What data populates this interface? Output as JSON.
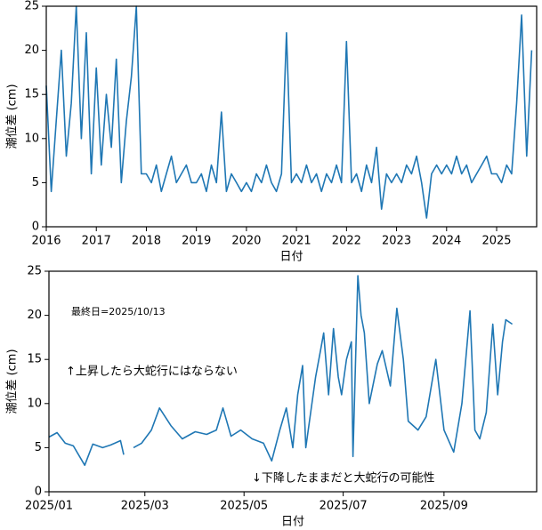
{
  "chart_data": [
    {
      "type": "line",
      "xlabel": "日付",
      "ylabel": "潮位差 (cm)",
      "x": [
        2016.0,
        2016.1,
        2016.2,
        2016.3,
        2016.4,
        2016.5,
        2016.6,
        2016.7,
        2016.8,
        2016.9,
        2017.0,
        2017.1,
        2017.2,
        2017.3,
        2017.4,
        2017.5,
        2017.6,
        2017.7,
        2017.8,
        2017.9,
        2018.0,
        2018.1,
        2018.2,
        2018.3,
        2018.4,
        2018.5,
        2018.6,
        2018.7,
        2018.8,
        2018.9,
        2019.0,
        2019.1,
        2019.2,
        2019.3,
        2019.4,
        2019.5,
        2019.6,
        2019.7,
        2019.8,
        2019.9,
        2020.0,
        2020.1,
        2020.2,
        2020.3,
        2020.4,
        2020.5,
        2020.6,
        2020.7,
        2020.8,
        2020.9,
        2021.0,
        2021.1,
        2021.2,
        2021.3,
        2021.4,
        2021.5,
        2021.6,
        2021.7,
        2021.8,
        2021.9,
        2022.0,
        2022.1,
        2022.2,
        2022.3,
        2022.4,
        2022.5,
        2022.6,
        2022.7,
        2022.8,
        2022.9,
        2023.0,
        2023.1,
        2023.2,
        2023.3,
        2023.4,
        2023.5,
        2023.6,
        2023.7,
        2023.8,
        2023.9,
        2024.0,
        2024.1,
        2024.2,
        2024.3,
        2024.4,
        2024.5,
        2024.6,
        2024.7,
        2024.8,
        2024.9,
        2025.0,
        2025.1,
        2025.2,
        2025.3,
        2025.4,
        2025.5,
        2025.6,
        2025.7
      ],
      "series": [
        {
          "color": "#1f77b4",
          "values": [
            16,
            4,
            12,
            20,
            8,
            14,
            25,
            10,
            22,
            6,
            18,
            7,
            15,
            9,
            19,
            5,
            12,
            17,
            25,
            6,
            6,
            5,
            7,
            4,
            6,
            8,
            5,
            6,
            7,
            5,
            5,
            6,
            4,
            7,
            5,
            13,
            4,
            6,
            5,
            4,
            5,
            4,
            6,
            5,
            7,
            5,
            4,
            6,
            22,
            5,
            6,
            5,
            7,
            5,
            6,
            4,
            6,
            5,
            7,
            5,
            21,
            5,
            6,
            4,
            7,
            5,
            9,
            2,
            6,
            5,
            6,
            5,
            7,
            6,
            8,
            5,
            1,
            6,
            7,
            6,
            7,
            6,
            8,
            6,
            7,
            5,
            6,
            7,
            8,
            6,
            6,
            5,
            7,
            6,
            14,
            24,
            8,
            20
          ]
        }
      ],
      "xlim": [
        2016,
        2025.8
      ],
      "xticks": [
        2016,
        2017,
        2018,
        2019,
        2020,
        2021,
        2022,
        2023,
        2024,
        2025
      ],
      "ylim": [
        0,
        25
      ],
      "yticks": [
        0,
        5,
        10,
        15,
        20,
        25
      ]
    },
    {
      "type": "line",
      "xlabel": "日付",
      "ylabel": "潮位差 (cm)",
      "annotations": [
        "最終日=2025/10/13",
        "↑上昇したら大蛇行にはならない",
        "↓下降したままだと大蛇行の可能性"
      ],
      "x": [
        0,
        5,
        10,
        15,
        22,
        27,
        33,
        38,
        44,
        46,
        48,
        52,
        57,
        63,
        68,
        75,
        82,
        90,
        97,
        103,
        107,
        112,
        118,
        125,
        132,
        137,
        142,
        146,
        150,
        153,
        156,
        158,
        161,
        164,
        167,
        169,
        172,
        175,
        178,
        180,
        183,
        186,
        187,
        190,
        192,
        194,
        197,
        202,
        205,
        210,
        214,
        218,
        221,
        227,
        232,
        238,
        243,
        249,
        254,
        259,
        262,
        265,
        269,
        273,
        276,
        279,
        281,
        285
      ],
      "series": [
        {
          "color": "#1f77b4",
          "values": [
            6.2,
            6.7,
            5.5,
            5.2,
            3.0,
            5.4,
            5.0,
            5.3,
            5.8,
            4.2,
            null,
            5.0,
            5.5,
            7.0,
            9.5,
            7.5,
            6.0,
            6.8,
            6.5,
            7.0,
            9.5,
            6.3,
            7.0,
            6.0,
            5.5,
            3.5,
            7.0,
            9.5,
            5.0,
            11.0,
            14.3,
            5.0,
            9.0,
            13.0,
            16.0,
            18.0,
            11.0,
            18.5,
            13.0,
            11.0,
            15.0,
            17.0,
            4.0,
            24.5,
            20.0,
            18.0,
            10.0,
            14.5,
            16.0,
            12.0,
            20.8,
            15.0,
            8.0,
            7.0,
            8.5,
            15.0,
            7.0,
            4.5,
            10.0,
            20.5,
            7.0,
            6.0,
            9.0,
            19.0,
            11.0,
            17.0,
            19.5,
            19.0
          ]
        }
      ],
      "xlim": [
        0,
        300
      ],
      "xticks": [
        {
          "value": 0,
          "label": "2025/01"
        },
        {
          "value": 59,
          "label": "2025/03"
        },
        {
          "value": 120,
          "label": "2025/05"
        },
        {
          "value": 181,
          "label": "2025/07"
        },
        {
          "value": 243,
          "label": "2025/09"
        }
      ],
      "ylim": [
        0,
        25
      ],
      "yticks": [
        0,
        5,
        10,
        15,
        20,
        25
      ]
    }
  ]
}
